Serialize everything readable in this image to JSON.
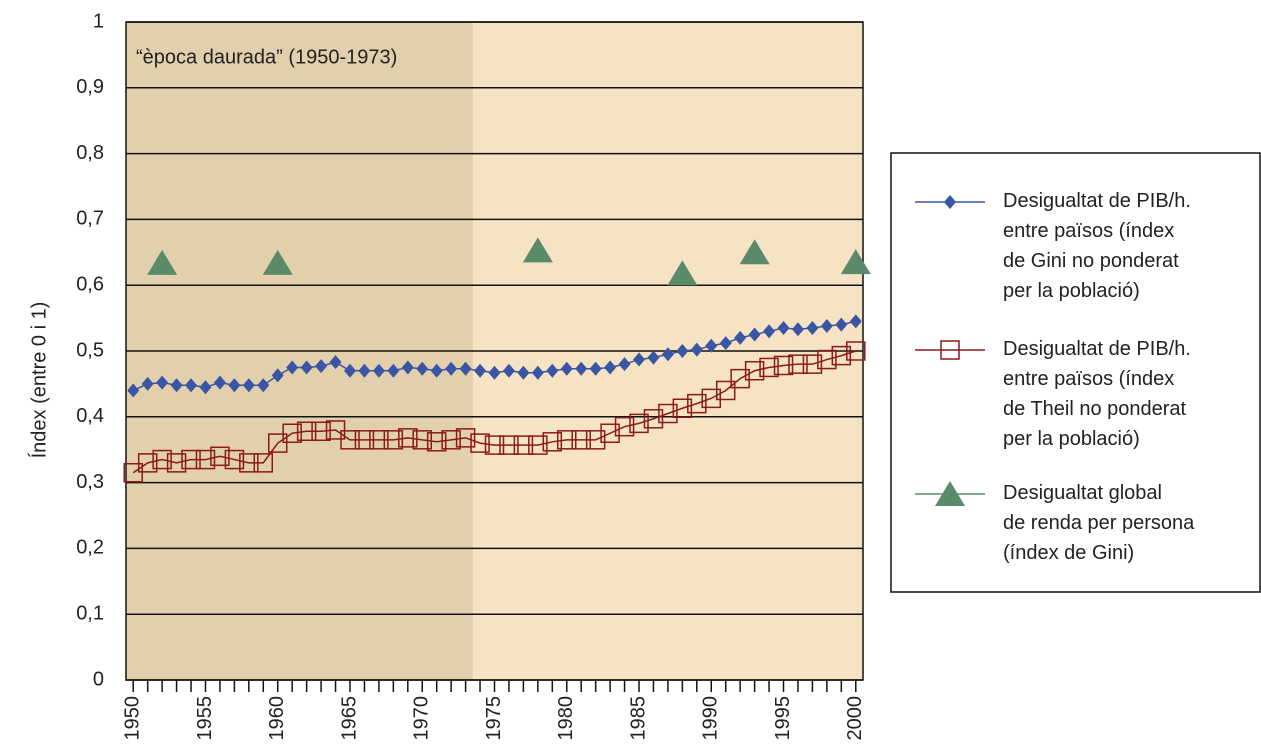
{
  "chart_data": {
    "type": "line",
    "annotation": "“època daurada” (1950-1973)",
    "shade": [
      1949.5,
      1973.5
    ],
    "shade_color": "#e2cfac",
    "background": "#f5e3c3",
    "ylabel": "Índex (entre 0 i 1)",
    "xlim": [
      1949.5,
      2000.5
    ],
    "ylim": [
      0,
      1
    ],
    "xticks": [
      1950,
      1955,
      1960,
      1965,
      1970,
      1975,
      1980,
      1985,
      1990,
      1995,
      2000
    ],
    "xminorticks": [
      1951,
      1952,
      1953,
      1954,
      1956,
      1957,
      1958,
      1959,
      1961,
      1962,
      1963,
      1964,
      1966,
      1967,
      1968,
      1969,
      1971,
      1972,
      1973,
      1974,
      1976,
      1977,
      1978,
      1979,
      1981,
      1982,
      1983,
      1984,
      1986,
      1987,
      1988,
      1989,
      1991,
      1992,
      1993,
      1994,
      1996,
      1997,
      1998,
      1999
    ],
    "yticks": [
      0,
      {
        "value": 0.1,
        "label": "0,1"
      },
      {
        "value": 0.2,
        "label": "0,2"
      },
      {
        "value": 0.3,
        "label": "0,3"
      },
      {
        "value": 0.4,
        "label": "0,4"
      },
      {
        "value": 0.5,
        "label": "0,5"
      },
      {
        "value": 0.6,
        "label": "0,6"
      },
      {
        "value": 0.7,
        "label": "0,7"
      },
      {
        "value": 0.8,
        "label": "0,8"
      },
      {
        "value": 0.9,
        "label": "0,9"
      },
      1
    ],
    "grid": true,
    "legend": "right",
    "series": [
      {
        "name": "Desigualtat de PIB/h.\nentre països (índex\nde Gini no ponderat\nper la població)",
        "color": "#3a55a4",
        "marker": "diamond",
        "line": true,
        "x": [
          1950,
          1951,
          1952,
          1953,
          1954,
          1955,
          1956,
          1957,
          1958,
          1959,
          1960,
          1961,
          1962,
          1963,
          1964,
          1965,
          1966,
          1967,
          1968,
          1969,
          1970,
          1971,
          1972,
          1973,
          1974,
          1975,
          1976,
          1977,
          1978,
          1979,
          1980,
          1981,
          1982,
          1983,
          1984,
          1985,
          1986,
          1987,
          1988,
          1989,
          1990,
          1991,
          1992,
          1993,
          1994,
          1995,
          1996,
          1997,
          1998,
          1999,
          2000
        ],
        "values": [
          0.44,
          0.45,
          0.452,
          0.448,
          0.448,
          0.445,
          0.452,
          0.448,
          0.448,
          0.448,
          0.463,
          0.475,
          0.475,
          0.477,
          0.483,
          0.47,
          0.47,
          0.47,
          0.47,
          0.475,
          0.473,
          0.47,
          0.473,
          0.473,
          0.47,
          0.467,
          0.47,
          0.467,
          0.467,
          0.47,
          0.473,
          0.473,
          0.473,
          0.475,
          0.48,
          0.487,
          0.49,
          0.495,
          0.5,
          0.502,
          0.508,
          0.512,
          0.52,
          0.525,
          0.53,
          0.535,
          0.533,
          0.535,
          0.538,
          0.54,
          0.545
        ]
      },
      {
        "name": "Desigualtat de PIB/h.\nentre països (índex\nde Theil no ponderat\nper la població)",
        "color": "#8b1a1a",
        "marker": "square",
        "line": true,
        "x": [
          1950,
          1951,
          1952,
          1953,
          1954,
          1955,
          1956,
          1957,
          1958,
          1959,
          1960,
          1961,
          1962,
          1963,
          1964,
          1965,
          1966,
          1967,
          1968,
          1969,
          1970,
          1971,
          1972,
          1973,
          1974,
          1975,
          1976,
          1977,
          1978,
          1979,
          1980,
          1981,
          1982,
          1983,
          1984,
          1985,
          1986,
          1987,
          1988,
          1989,
          1990,
          1991,
          1992,
          1993,
          1994,
          1995,
          1996,
          1997,
          1998,
          1999,
          2000
        ],
        "values": [
          0.315,
          0.33,
          0.335,
          0.33,
          0.335,
          0.335,
          0.34,
          0.335,
          0.33,
          0.33,
          0.36,
          0.375,
          0.378,
          0.378,
          0.38,
          0.365,
          0.365,
          0.365,
          0.365,
          0.368,
          0.365,
          0.362,
          0.365,
          0.368,
          0.36,
          0.357,
          0.357,
          0.357,
          0.357,
          0.362,
          0.365,
          0.365,
          0.365,
          0.375,
          0.385,
          0.39,
          0.397,
          0.405,
          0.413,
          0.42,
          0.428,
          0.44,
          0.458,
          0.47,
          0.475,
          0.478,
          0.48,
          0.48,
          0.487,
          0.493,
          0.5
        ]
      },
      {
        "name": "Desigualtat global\nde renda per persona\n(índex de Gini)",
        "color": "#5a8a6a",
        "marker": "triangle",
        "line": false,
        "x": [
          1952,
          1960,
          1978,
          1988,
          1993,
          2000
        ],
        "values": [
          0.634,
          0.634,
          0.653,
          0.618,
          0.65,
          0.635
        ]
      }
    ]
  }
}
